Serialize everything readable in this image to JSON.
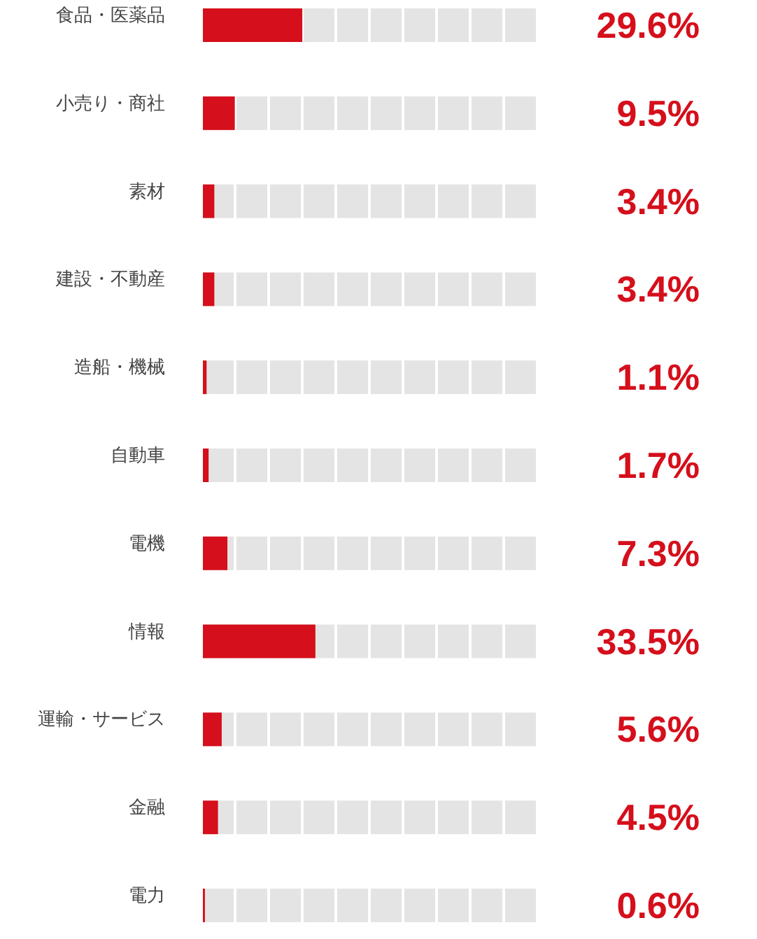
{
  "chart_data": {
    "type": "bar",
    "orientation": "horizontal",
    "categories": [
      "食品・医薬品",
      "小売り・商社",
      "素材",
      "建設・不動産",
      "造船・機械",
      "自動車",
      "電機",
      "情報",
      "運輸・サービス",
      "金融",
      "電力"
    ],
    "values": [
      29.6,
      9.5,
      3.4,
      3.4,
      1.1,
      1.7,
      7.3,
      33.5,
      5.6,
      4.5,
      0.6
    ],
    "value_labels": [
      "29.6%",
      "9.5%",
      "3.4%",
      "3.4%",
      "1.1%",
      "1.7%",
      "7.3%",
      "33.5%",
      "5.6%",
      "4.5%",
      "0.6%"
    ],
    "color": "#d50f1b"
  }
}
